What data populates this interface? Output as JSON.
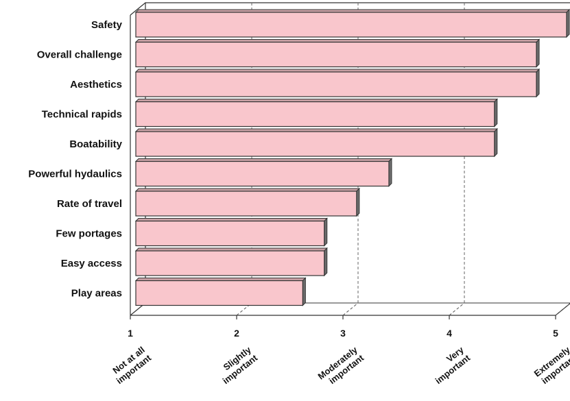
{
  "chart_data": {
    "type": "bar",
    "orientation": "horizontal",
    "style": "3d",
    "title": "",
    "xlabel": "",
    "ylabel": "",
    "categories": [
      "Safety",
      "Overall challenge",
      "Aesthetics",
      "Technical rapids",
      "Boatability",
      "Powerful hydaulics",
      "Rate of travel",
      "Few portages",
      "Easy access",
      "Play areas"
    ],
    "values": [
      5.0,
      4.72,
      4.72,
      4.33,
      4.33,
      3.35,
      3.05,
      2.75,
      2.75,
      2.55
    ],
    "xlim": [
      1,
      5
    ],
    "x_ticks": [
      1,
      2,
      3,
      4,
      5
    ],
    "x_tick_descriptions": [
      [
        "Not at all",
        "important"
      ],
      [
        "Slightly",
        "important"
      ],
      [
        "Moderately",
        "important"
      ],
      [
        "Very",
        "important"
      ],
      [
        "Extremely",
        "important"
      ]
    ],
    "grid": "vertical-dashed",
    "bar_color": "#f9c6cc"
  }
}
